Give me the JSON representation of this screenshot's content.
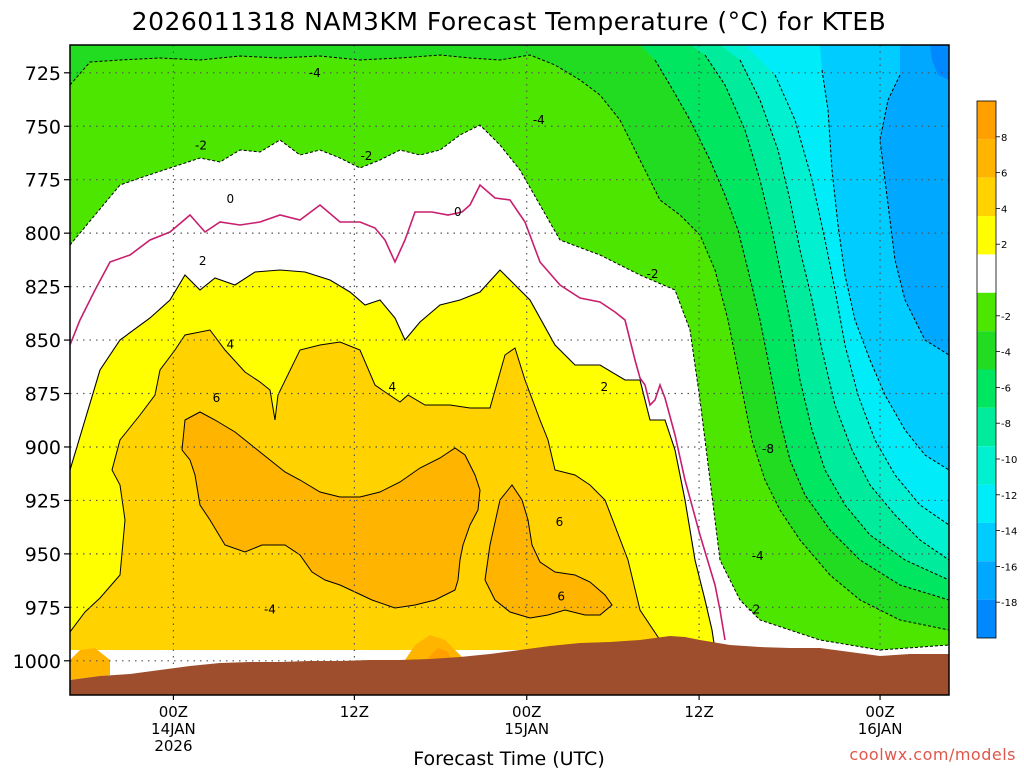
{
  "chart_data": {
    "type": "heatmap",
    "title": "2026011318 NAM3KM Forecast Temperature (°C) for KTEB",
    "xlabel": "Forecast Time (UTC)",
    "ylabel": "",
    "credit": "coolwx.com/models",
    "yticks": [
      725,
      750,
      775,
      800,
      825,
      850,
      875,
      900,
      925,
      950,
      975,
      1000
    ],
    "ylim": [
      1016,
      712
    ],
    "xlim": [
      -6,
      45
    ],
    "xticks": [
      {
        "hour": 0,
        "lines": [
          "00Z",
          "14JAN",
          "2026"
        ]
      },
      {
        "hour": 10.5,
        "lines": [
          "12Z"
        ]
      },
      {
        "hour": 20.5,
        "lines": [
          "00Z",
          "15JAN"
        ]
      },
      {
        "hour": 30.5,
        "lines": [
          "12Z"
        ]
      },
      {
        "hour": 41,
        "lines": [
          "00Z",
          "16JAN"
        ]
      }
    ],
    "colorbar": {
      "labels": [
        8,
        6,
        4,
        2,
        -2,
        -4,
        -6,
        -8,
        -10,
        -12,
        -14,
        -16,
        -18
      ],
      "bins": [
        {
          "range": [
            8,
            10
          ],
          "color": "#ffa000"
        },
        {
          "range": [
            6,
            8
          ],
          "color": "#ffb400"
        },
        {
          "range": [
            4,
            6
          ],
          "color": "#ffd200"
        },
        {
          "range": [
            2,
            4
          ],
          "color": "#ffff00"
        },
        {
          "range": [
            -2,
            2
          ],
          "color": "#ffffff"
        },
        {
          "range": [
            -4,
            -2
          ],
          "color": "#4de600"
        },
        {
          "range": [
            -6,
            -4
          ],
          "color": "#22dc22"
        },
        {
          "range": [
            -8,
            -6
          ],
          "color": "#00e660"
        },
        {
          "range": [
            -10,
            -8
          ],
          "color": "#00ec9c"
        },
        {
          "range": [
            -12,
            -10
          ],
          "color": "#00f0d0"
        },
        {
          "range": [
            -14,
            -12
          ],
          "color": "#00ecf8"
        },
        {
          "range": [
            -16,
            -14
          ],
          "color": "#00ccff"
        },
        {
          "range": [
            -18,
            -16
          ],
          "color": "#00a8ff"
        },
        {
          "range": [
            -20,
            -18
          ],
          "color": "#0088ff"
        }
      ]
    },
    "contour_labels": [
      {
        "text": "-4",
        "hour": 8.2,
        "p": 725
      },
      {
        "text": "-4",
        "hour": 21.2,
        "p": 747
      },
      {
        "text": "-2",
        "hour": 1.6,
        "p": 759
      },
      {
        "text": "-2",
        "hour": 11.2,
        "p": 764
      },
      {
        "text": "0",
        "hour": 3.3,
        "p": 784
      },
      {
        "text": "0",
        "hour": 16.5,
        "p": 790
      },
      {
        "text": "-2",
        "hour": 27.8,
        "p": 819
      },
      {
        "text": "2",
        "hour": 1.7,
        "p": 813
      },
      {
        "text": "4",
        "hour": 3.3,
        "p": 852
      },
      {
        "text": "4",
        "hour": 12.7,
        "p": 872
      },
      {
        "text": "2",
        "hour": 25.0,
        "p": 872
      },
      {
        "text": "6",
        "hour": 2.5,
        "p": 877
      },
      {
        "text": "-8",
        "hour": 34.5,
        "p": 901
      },
      {
        "text": "6",
        "hour": 22.4,
        "p": 935
      },
      {
        "text": "-4",
        "hour": 33.9,
        "p": 951
      },
      {
        "text": "6",
        "hour": 22.5,
        "p": 970
      },
      {
        "text": "-4",
        "hour": 5.6,
        "p": 976
      },
      {
        "text": "-2",
        "hour": 33.7,
        "p": 976
      }
    ],
    "grid": true
  }
}
